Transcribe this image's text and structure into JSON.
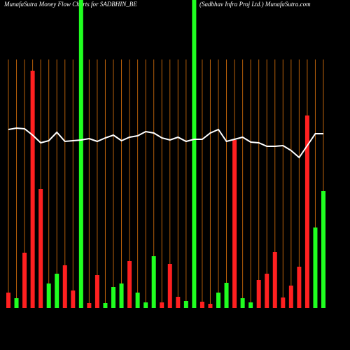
{
  "chart_data": {
    "type": "bar",
    "title": "MunafaSutra  Money Flow  Charts for SADBHIN_BE",
    "subtitle": "(Sadbhav   Infra   Proj Ltd.) MunafaSutra.com",
    "ylim": [
      0,
      440
    ],
    "series": [
      {
        "name": "flow",
        "values": [
          22,
          14,
          79,
          339,
          170,
          35,
          49,
          61,
          25,
          440,
          7,
          47,
          7,
          30,
          35,
          67,
          22,
          8,
          74,
          8,
          63,
          16,
          10,
          440,
          9,
          6,
          22,
          36,
          240,
          14,
          8,
          40,
          49,
          80,
          15,
          32,
          59,
          275,
          115,
          167
        ],
        "colors": [
          "#ff2020",
          "#20ff20",
          "#ff2020",
          "#ff2020",
          "#ff2020",
          "#20ff20",
          "#20ff20",
          "#ff2020",
          "#ff2020",
          "#20ff20",
          "#ff2020",
          "#ff2020",
          "#20ff20",
          "#20ff20",
          "#20ff20",
          "#ff2020",
          "#20ff20",
          "#20ff20",
          "#20ff20",
          "#ff2020",
          "#ff2020",
          "#ff2020",
          "#20ff20",
          "#20ff20",
          "#ff2020",
          "#ff2020",
          "#20ff20",
          "#20ff20",
          "#ff2020",
          "#20ff20",
          "#20ff20",
          "#ff2020",
          "#ff2020",
          "#ff2020",
          "#ff2020",
          "#ff2020",
          "#ff2020",
          "#ff2020",
          "#20ff20",
          "#20ff20"
        ]
      },
      {
        "name": "price",
        "color": "#ffffff",
        "values": [
          255,
          257,
          256,
          247,
          236,
          239,
          251,
          238,
          239,
          240,
          242,
          238,
          243,
          247,
          239,
          244,
          246,
          252,
          250,
          243,
          240,
          244,
          238,
          241,
          241,
          250,
          255,
          238,
          241,
          244,
          237,
          236,
          231,
          231,
          232,
          225,
          215,
          232,
          249,
          249
        ]
      }
    ]
  }
}
